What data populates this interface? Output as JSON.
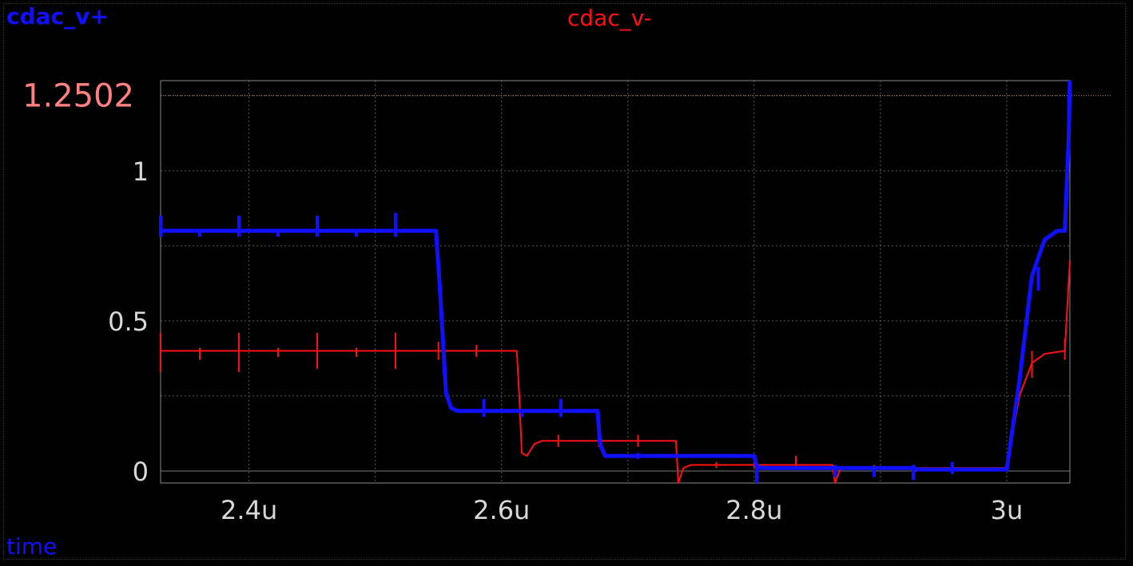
{
  "chart_data": {
    "type": "line",
    "xlabel": "time",
    "xlim": [
      2.33,
      3.05
    ],
    "ylim": [
      -0.04,
      1.3
    ],
    "x_unit": "u",
    "xticks": [
      {
        "value": 2.4,
        "label": "2.4u"
      },
      {
        "value": 2.6,
        "label": "2.6u"
      },
      {
        "value": 2.8,
        "label": "2.8u"
      },
      {
        "value": 3.0,
        "label": "3u"
      }
    ],
    "yticks": [
      {
        "value": 0,
        "label": "0"
      },
      {
        "value": 0.5,
        "label": "0.5"
      },
      {
        "value": 1,
        "label": "1"
      }
    ],
    "cursor": {
      "value": 1.2502,
      "label": "1.2502",
      "color": "#ff8080"
    },
    "grid": true,
    "series": [
      {
        "name": "cdac_v+",
        "color": "#1010ff",
        "points": [
          [
            2.33,
            0.8
          ],
          [
            2.548,
            0.8
          ],
          [
            2.551,
            0.62
          ],
          [
            2.556,
            0.26
          ],
          [
            2.56,
            0.21
          ],
          [
            2.565,
            0.2
          ],
          [
            2.676,
            0.2
          ],
          [
            2.678,
            0.09
          ],
          [
            2.682,
            0.05
          ],
          [
            2.686,
            0.05
          ],
          [
            2.8,
            0.05
          ],
          [
            2.802,
            0.015
          ],
          [
            2.806,
            0.01
          ],
          [
            2.926,
            0.01
          ],
          [
            2.93,
            0.005
          ],
          [
            3.0,
            0.005
          ],
          [
            3.01,
            0.3
          ],
          [
            3.02,
            0.65
          ],
          [
            3.03,
            0.77
          ],
          [
            3.04,
            0.8
          ],
          [
            3.046,
            0.8
          ],
          [
            3.049,
            1.1
          ],
          [
            3.05,
            1.3
          ]
        ],
        "spikes": [
          [
            2.33,
            0.85,
            0.78
          ],
          [
            2.361,
            0.8,
            0.78
          ],
          [
            2.392,
            0.85,
            0.78
          ],
          [
            2.423,
            0.8,
            0.78
          ],
          [
            2.454,
            0.85,
            0.78
          ],
          [
            2.485,
            0.8,
            0.78
          ],
          [
            2.516,
            0.86,
            0.78
          ],
          [
            2.586,
            0.24,
            0.18
          ],
          [
            2.616,
            0.2,
            0.18
          ],
          [
            2.647,
            0.24,
            0.18
          ],
          [
            2.708,
            0.06,
            0.04
          ],
          [
            2.802,
            0.02,
            -0.04
          ],
          [
            2.864,
            0.02,
            -0.02
          ],
          [
            2.895,
            0.015,
            -0.02
          ],
          [
            2.926,
            0.02,
            -0.03
          ],
          [
            2.957,
            0.03,
            -0.01
          ],
          [
            3.025,
            0.68,
            0.6
          ]
        ]
      },
      {
        "name": "cdac_v-",
        "color": "#ff1010",
        "points": [
          [
            2.33,
            0.4
          ],
          [
            2.612,
            0.4
          ],
          [
            2.614,
            0.25
          ],
          [
            2.616,
            0.06
          ],
          [
            2.62,
            0.05
          ],
          [
            2.626,
            0.09
          ],
          [
            2.632,
            0.1
          ],
          [
            2.738,
            0.1
          ],
          [
            2.74,
            -0.04
          ],
          [
            2.744,
            0.01
          ],
          [
            2.75,
            0.02
          ],
          [
            2.862,
            0.02
          ],
          [
            2.864,
            -0.04
          ],
          [
            2.868,
            0.005
          ],
          [
            2.874,
            0.01
          ],
          [
            2.99,
            0.01
          ],
          [
            3.0,
            0.01
          ],
          [
            3.01,
            0.25
          ],
          [
            3.02,
            0.36
          ],
          [
            3.03,
            0.39
          ],
          [
            3.046,
            0.4
          ],
          [
            3.048,
            0.55
          ],
          [
            3.05,
            0.7
          ]
        ],
        "spikes": [
          [
            2.33,
            0.46,
            0.33
          ],
          [
            2.361,
            0.41,
            0.37
          ],
          [
            2.392,
            0.46,
            0.33
          ],
          [
            2.423,
            0.41,
            0.38
          ],
          [
            2.454,
            0.46,
            0.34
          ],
          [
            2.485,
            0.41,
            0.38
          ],
          [
            2.516,
            0.46,
            0.34
          ],
          [
            2.55,
            0.43,
            0.37
          ],
          [
            2.58,
            0.42,
            0.38
          ],
          [
            2.645,
            0.12,
            0.08
          ],
          [
            2.677,
            0.12,
            0.08
          ],
          [
            2.708,
            0.12,
            0.08
          ],
          [
            2.77,
            0.03,
            0.01
          ],
          [
            2.8,
            0.03,
            0.01
          ],
          [
            2.833,
            0.05,
            0.01
          ],
          [
            2.895,
            0.02,
            0.0
          ],
          [
            2.926,
            0.02,
            0.0
          ],
          [
            2.957,
            0.02,
            0.0
          ],
          [
            3.02,
            0.4,
            0.31
          ],
          [
            3.046,
            0.44,
            0.37
          ]
        ]
      }
    ]
  }
}
